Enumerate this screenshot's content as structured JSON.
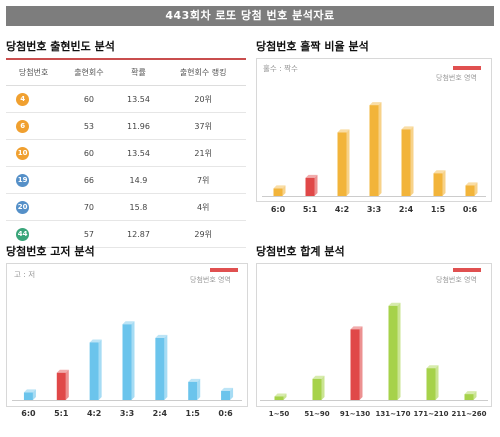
{
  "header": {
    "title": "443회차 로또 당첨 번호 분석자료"
  },
  "sections": {
    "freq_title": "당첨번호 출현빈도 분석",
    "oddeven_title": "당첨번호 홀짝 비율 분석",
    "highlow_title": "당첨번호 고저 분석",
    "sum_title": "당첨번호 합계 분석"
  },
  "legend_label": "당첨번호 영역",
  "colors": {
    "accent": "#e05050",
    "bar_orange": "#f2b43a",
    "bar_blue": "#6bc4ec",
    "bar_green": "#a6d24a",
    "bar_red": "#e04848"
  },
  "table": {
    "columns": [
      "당첨번호",
      "출현회수",
      "확률",
      "출현회수 랭킹"
    ],
    "rows": [
      {
        "ball": "4",
        "color": "#f0a030",
        "count": "60",
        "prob": "13.54",
        "rank": "20위"
      },
      {
        "ball": "6",
        "color": "#f0a030",
        "count": "53",
        "prob": "11.96",
        "rank": "37위"
      },
      {
        "ball": "10",
        "color": "#f0a030",
        "count": "60",
        "prob": "13.54",
        "rank": "21위"
      },
      {
        "ball": "19",
        "color": "#5590c8",
        "count": "66",
        "prob": "14.9",
        "rank": "7위"
      },
      {
        "ball": "20",
        "color": "#5590c8",
        "count": "70",
        "prob": "15.8",
        "rank": "4위"
      },
      {
        "ball": "44",
        "color": "#3aa57a",
        "count": "57",
        "prob": "12.87",
        "rank": "29위"
      }
    ]
  },
  "chart_data": [
    {
      "type": "bar",
      "title": "당첨번호 홀짝 비율 분석",
      "note": "홀수 : 짝수",
      "categories": [
        "6:0",
        "5:1",
        "4:2",
        "3:3",
        "2:4",
        "1:5",
        "0:6"
      ],
      "values": [
        5,
        12,
        42,
        60,
        44,
        15,
        7
      ],
      "highlight_index": 1,
      "ylim": [
        0,
        70
      ],
      "grid": false,
      "legend_position": "top-right"
    },
    {
      "type": "bar",
      "title": "당첨번호 고저 분석",
      "note": "고 : 저",
      "categories": [
        "6:0",
        "5:1",
        "4:2",
        "3:3",
        "2:4",
        "1:5",
        "0:6"
      ],
      "values": [
        5,
        18,
        38,
        50,
        41,
        12,
        6
      ],
      "highlight_index": 1,
      "ylim": [
        0,
        70
      ],
      "grid": false,
      "legend_position": "top-right"
    },
    {
      "type": "bar",
      "title": "당첨번호 합계 분석",
      "categories": [
        "1~50",
        "51~90",
        "91~130",
        "131~170",
        "171~210",
        "211~260"
      ],
      "values": [
        3,
        18,
        60,
        80,
        27,
        5
      ],
      "highlight_index": 2,
      "ylim": [
        0,
        90
      ],
      "grid": false,
      "legend_position": "top-right"
    }
  ]
}
